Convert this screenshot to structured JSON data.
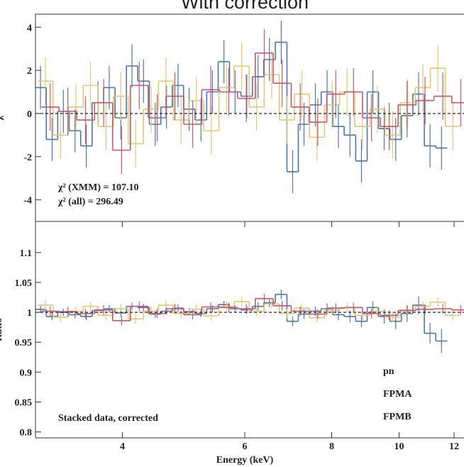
{
  "chart_data": [
    {
      "type": "step",
      "title": "With correction",
      "ylabel": "χ",
      "xscale": "log",
      "xlim": [
        3,
        12.4
      ],
      "ylim": [
        -5,
        4.6
      ],
      "yticks": [
        4,
        2,
        0,
        -2,
        -4
      ],
      "hline": 0,
      "annotations": [
        "χ² (XMM) = 107.10",
        "χ² (all) = 296.49"
      ],
      "series": [
        {
          "color": "#4a76b0",
          "x": [
            3.05,
            3.17,
            3.29,
            3.42,
            3.55,
            3.69,
            3.83,
            3.98,
            4.13,
            4.29,
            4.46,
            4.63,
            4.81,
            4.99,
            5.19,
            5.39,
            5.6,
            5.81,
            6.04,
            6.27,
            6.51,
            6.77,
            7.03,
            7.3,
            7.58,
            7.88,
            8.18,
            8.5,
            8.83,
            9.17,
            9.52,
            9.89,
            10.27,
            10.67,
            11.08,
            11.51
          ],
          "values": [
            1.2,
            -1.2,
            0.1,
            -0.8,
            -1.5,
            0.5,
            1.2,
            -0.2,
            2.2,
            1.5,
            -0.5,
            0.3,
            1.3,
            0.2,
            -0.3,
            1.0,
            2.4,
            1.0,
            0.8,
            1.7,
            2.5,
            3.3,
            -2.7,
            -0.5,
            0.4,
            1.0,
            -0.6,
            -1.0,
            -2.2,
            1.0,
            -0.7,
            -1.2,
            -0.1,
            0.9,
            -1.5,
            -1.6
          ],
          "errors": [
            1.0,
            1.0,
            1.0,
            1.0,
            1.0,
            1.0,
            1.0,
            1.0,
            1.0,
            1.0,
            1.0,
            1.0,
            1.0,
            1.0,
            1.0,
            1.0,
            1.0,
            1.0,
            1.0,
            1.0,
            1.0,
            1.0,
            1.0,
            1.0,
            1.0,
            1.0,
            1.0,
            1.0,
            1.0,
            1.0,
            1.0,
            1.0,
            1.0,
            1.0,
            1.0,
            1.0
          ]
        },
        {
          "color": "#e0c872",
          "x": [
            3.1,
            3.26,
            3.43,
            3.6,
            3.79,
            3.98,
            4.18,
            4.4,
            4.62,
            4.86,
            5.11,
            5.37,
            5.65,
            5.94,
            6.24,
            6.56,
            6.9,
            7.25,
            7.62,
            8.01,
            8.42,
            8.86,
            9.31,
            9.79,
            10.29,
            10.82,
            11.37,
            11.95
          ],
          "values": [
            1.5,
            -1.0,
            0.3,
            1.3,
            -0.6,
            0.8,
            -1.4,
            0.2,
            1.5,
            -0.3,
            0.6,
            -0.8,
            1.2,
            2.2,
            0.3,
            1.8,
            -0.3,
            0.9,
            -1.1,
            0.4,
            1.0,
            -0.6,
            0.2,
            -1.0,
            0.5,
            1.2,
            2.1,
            -0.6
          ],
          "errors": [
            1.1,
            1.1,
            1.1,
            1.1,
            1.1,
            1.1,
            1.1,
            1.1,
            1.1,
            1.1,
            1.1,
            1.1,
            1.1,
            1.1,
            1.1,
            1.1,
            1.1,
            1.1,
            1.1,
            1.1,
            1.1,
            1.1,
            1.1,
            1.1,
            1.1,
            1.1,
            1.1,
            1.1
          ]
        },
        {
          "color": "#c9566e",
          "x": [
            3.15,
            3.34,
            3.54,
            3.76,
            3.99,
            4.23,
            4.49,
            4.76,
            5.05,
            5.36,
            5.69,
            6.03,
            6.4,
            6.79,
            7.21,
            7.64,
            8.11,
            8.6,
            9.13,
            9.68,
            10.27,
            10.9,
            11.56,
            12.27
          ],
          "values": [
            0.3,
            0.1,
            -0.3,
            0.5,
            -1.7,
            1.3,
            -0.2,
            0.8,
            -0.5,
            1.1,
            1.0,
            0.7,
            2.8,
            1.4,
            0.3,
            -0.4,
            0.9,
            1.0,
            -0.2,
            -0.6,
            0.4,
            0.6,
            0.8,
            0.5
          ],
          "errors": [
            1.1,
            1.1,
            1.1,
            1.1,
            1.1,
            1.1,
            1.1,
            1.1,
            1.1,
            1.1,
            1.1,
            1.1,
            1.1,
            1.1,
            1.1,
            1.1,
            1.1,
            1.1,
            1.1,
            1.1,
            1.1,
            1.1,
            1.1,
            1.1
          ]
        }
      ]
    },
    {
      "type": "step",
      "ylabel": "Ratio",
      "xlabel": "Energy (keV)",
      "xscale": "log",
      "xlim": [
        3,
        12.4
      ],
      "xticks": [
        4,
        6,
        8,
        10,
        12
      ],
      "ylim": [
        0.79,
        1.152
      ],
      "yticks": [
        1.1,
        1.05,
        1,
        0.95,
        0.9,
        0.85,
        0.8
      ],
      "hline": 1,
      "annotations": [
        "Stacked data, corrected"
      ],
      "legend": "lower right",
      "series": [
        {
          "name": "pn",
          "color": "#4a76b0",
          "x": [
            3.05,
            3.17,
            3.29,
            3.42,
            3.55,
            3.69,
            3.83,
            3.98,
            4.13,
            4.29,
            4.46,
            4.63,
            4.81,
            4.99,
            5.19,
            5.39,
            5.6,
            5.81,
            6.04,
            6.27,
            6.51,
            6.77,
            7.03,
            7.3,
            7.58,
            7.88,
            8.18,
            8.5,
            8.83,
            9.17,
            9.52,
            9.89,
            10.27,
            10.67,
            11.08,
            11.51
          ],
          "values": [
            1.005,
            0.993,
            1.0,
            0.996,
            0.993,
            1.003,
            1.006,
            0.999,
            1.01,
            1.008,
            0.997,
            1.002,
            1.007,
            1.001,
            0.998,
            1.006,
            1.013,
            1.006,
            1.004,
            1.01,
            1.016,
            1.03,
            0.985,
            0.997,
            1.002,
            1.006,
            0.996,
            0.993,
            0.985,
            1.008,
            0.993,
            0.985,
            0.998,
            1.012,
            0.965,
            0.952
          ],
          "errors": [
            0.006,
            0.006,
            0.006,
            0.006,
            0.006,
            0.006,
            0.006,
            0.006,
            0.006,
            0.006,
            0.006,
            0.006,
            0.006,
            0.006,
            0.006,
            0.006,
            0.006,
            0.006,
            0.006,
            0.007,
            0.007,
            0.008,
            0.008,
            0.008,
            0.008,
            0.009,
            0.009,
            0.01,
            0.01,
            0.011,
            0.012,
            0.013,
            0.014,
            0.015,
            0.017,
            0.02
          ]
        },
        {
          "name": "FPMA",
          "color": "#e0c872",
          "x": [
            3.1,
            3.26,
            3.43,
            3.6,
            3.79,
            3.98,
            4.18,
            4.4,
            4.62,
            4.86,
            5.11,
            5.37,
            5.65,
            5.94,
            6.24,
            6.56,
            6.9,
            7.25,
            7.62,
            8.01,
            8.42,
            8.86,
            9.31,
            9.79,
            10.29,
            10.82,
            11.37,
            11.95
          ],
          "values": [
            1.012,
            0.992,
            1.002,
            1.01,
            0.995,
            1.006,
            0.989,
            1.002,
            1.012,
            0.998,
            1.005,
            0.994,
            1.01,
            1.018,
            1.002,
            1.014,
            0.998,
            1.007,
            0.991,
            1.003,
            1.008,
            0.995,
            1.002,
            0.992,
            1.004,
            1.01,
            1.017,
            0.995
          ],
          "errors": [
            0.008,
            0.008,
            0.008,
            0.008,
            0.008,
            0.008,
            0.008,
            0.008,
            0.008,
            0.008,
            0.008,
            0.008,
            0.008,
            0.008,
            0.008,
            0.008,
            0.008,
            0.008,
            0.008,
            0.008,
            0.008,
            0.008,
            0.008,
            0.008,
            0.008,
            0.008,
            0.008,
            0.008
          ]
        },
        {
          "name": "FPMB",
          "color": "#c9566e",
          "x": [
            3.15,
            3.34,
            3.54,
            3.76,
            3.99,
            4.23,
            4.49,
            4.76,
            5.05,
            5.36,
            5.69,
            6.03,
            6.4,
            6.79,
            7.21,
            7.64,
            8.11,
            8.6,
            9.13,
            9.68,
            10.27,
            10.9,
            11.56,
            12.27
          ],
          "values": [
            1.002,
            1.001,
            0.998,
            1.004,
            0.986,
            1.01,
            0.998,
            1.006,
            0.996,
            1.009,
            1.008,
            1.006,
            1.023,
            1.011,
            1.002,
            0.997,
            1.007,
            1.008,
            0.998,
            0.995,
            1.003,
            1.005,
            1.006,
            1.004
          ],
          "errors": [
            0.008,
            0.008,
            0.008,
            0.008,
            0.008,
            0.008,
            0.008,
            0.008,
            0.008,
            0.008,
            0.008,
            0.008,
            0.008,
            0.008,
            0.008,
            0.008,
            0.008,
            0.008,
            0.008,
            0.008,
            0.008,
            0.008,
            0.008,
            0.008
          ]
        }
      ]
    }
  ]
}
